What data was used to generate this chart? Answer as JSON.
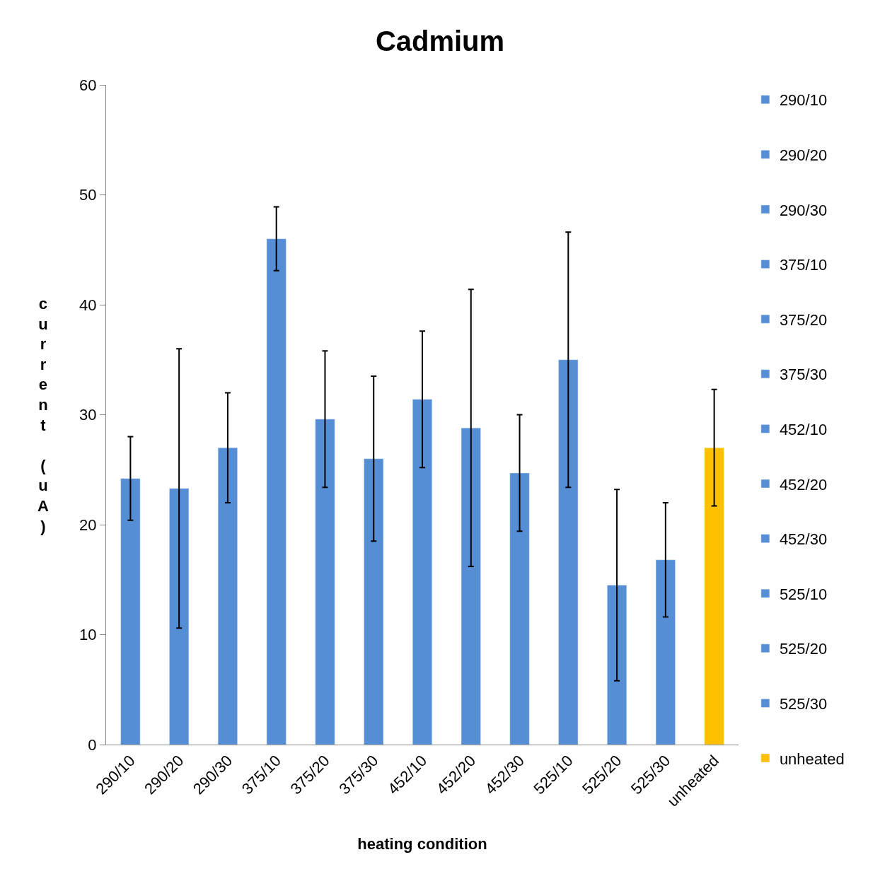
{
  "chart_data": {
    "type": "bar",
    "title": "Cadmium",
    "xlabel": "heating condition",
    "ylabel": "current (uA)",
    "categories": [
      "290/10",
      "290/20",
      "290/30",
      "375/10",
      "375/20",
      "375/30",
      "452/10",
      "452/20",
      "452/30",
      "525/10",
      "525/20",
      "525/30",
      "unheated"
    ],
    "series": [
      {
        "name": "290/10",
        "color": "#558ed5",
        "values": [
          24.2,
          null,
          null,
          null,
          null,
          null,
          null,
          null,
          null,
          null,
          null,
          null,
          null
        ],
        "errors": [
          3.8,
          null,
          null,
          null,
          null,
          null,
          null,
          null,
          null,
          null,
          null,
          null,
          null
        ]
      },
      {
        "name": "290/20",
        "color": "#558ed5",
        "values": [
          null,
          23.3,
          null,
          null,
          null,
          null,
          null,
          null,
          null,
          null,
          null,
          null,
          null
        ],
        "errors": [
          null,
          12.7,
          null,
          null,
          null,
          null,
          null,
          null,
          null,
          null,
          null,
          null,
          null
        ]
      },
      {
        "name": "290/30",
        "color": "#558ed5",
        "values": [
          null,
          null,
          27.0,
          null,
          null,
          null,
          null,
          null,
          null,
          null,
          null,
          null,
          null
        ],
        "errors": [
          null,
          null,
          5.0,
          null,
          null,
          null,
          null,
          null,
          null,
          null,
          null,
          null,
          null
        ]
      },
      {
        "name": "375/10",
        "color": "#558ed5",
        "values": [
          null,
          null,
          null,
          46.0,
          null,
          null,
          null,
          null,
          null,
          null,
          null,
          null,
          null
        ],
        "errors": [
          null,
          null,
          null,
          2.9,
          null,
          null,
          null,
          null,
          null,
          null,
          null,
          null,
          null
        ]
      },
      {
        "name": "375/20",
        "color": "#558ed5",
        "values": [
          null,
          null,
          null,
          null,
          29.6,
          null,
          null,
          null,
          null,
          null,
          null,
          null,
          null
        ],
        "errors": [
          null,
          null,
          null,
          null,
          6.2,
          null,
          null,
          null,
          null,
          null,
          null,
          null,
          null
        ]
      },
      {
        "name": "375/30",
        "color": "#558ed5",
        "values": [
          null,
          null,
          null,
          null,
          null,
          26.0,
          null,
          null,
          null,
          null,
          null,
          null,
          null
        ],
        "errors": [
          null,
          null,
          null,
          null,
          null,
          7.5,
          null,
          null,
          null,
          null,
          null,
          null,
          null
        ]
      },
      {
        "name": "452/10",
        "color": "#558ed5",
        "values": [
          null,
          null,
          null,
          null,
          null,
          null,
          31.4,
          null,
          null,
          null,
          null,
          null,
          null
        ],
        "errors": [
          null,
          null,
          null,
          null,
          null,
          null,
          6.2,
          null,
          null,
          null,
          null,
          null,
          null
        ]
      },
      {
        "name": "452/20",
        "color": "#558ed5",
        "values": [
          null,
          null,
          null,
          null,
          null,
          null,
          null,
          28.8,
          null,
          null,
          null,
          null,
          null
        ],
        "errors": [
          null,
          null,
          null,
          null,
          null,
          null,
          null,
          12.6,
          null,
          null,
          null,
          null,
          null
        ]
      },
      {
        "name": "452/30",
        "color": "#558ed5",
        "values": [
          null,
          null,
          null,
          null,
          null,
          null,
          null,
          null,
          24.7,
          null,
          null,
          null,
          null
        ],
        "errors": [
          null,
          null,
          null,
          null,
          null,
          null,
          null,
          null,
          5.3,
          null,
          null,
          null,
          null
        ]
      },
      {
        "name": "525/10",
        "color": "#558ed5",
        "values": [
          null,
          null,
          null,
          null,
          null,
          null,
          null,
          null,
          null,
          35.0,
          null,
          null,
          null
        ],
        "errors": [
          null,
          null,
          null,
          null,
          null,
          null,
          null,
          null,
          null,
          11.6,
          null,
          null,
          null
        ]
      },
      {
        "name": "525/20",
        "color": "#558ed5",
        "values": [
          null,
          null,
          null,
          null,
          null,
          null,
          null,
          null,
          null,
          null,
          14.5,
          null,
          null
        ],
        "errors": [
          null,
          null,
          null,
          null,
          null,
          null,
          null,
          null,
          null,
          null,
          8.7,
          null,
          null
        ]
      },
      {
        "name": "525/30",
        "color": "#558ed5",
        "values": [
          null,
          null,
          null,
          null,
          null,
          null,
          null,
          null,
          null,
          null,
          null,
          16.8,
          null
        ],
        "errors": [
          null,
          null,
          null,
          null,
          null,
          null,
          null,
          null,
          null,
          null,
          null,
          5.2,
          null
        ]
      },
      {
        "name": "unheated",
        "color": "#ffc000",
        "values": [
          null,
          null,
          null,
          null,
          null,
          null,
          null,
          null,
          null,
          null,
          null,
          null,
          27.0
        ],
        "errors": [
          null,
          null,
          null,
          null,
          null,
          null,
          null,
          null,
          null,
          null,
          null,
          null,
          5.3
        ]
      }
    ],
    "ylim": [
      0,
      60
    ],
    "yticks": [
      0,
      10,
      20,
      30,
      40,
      50,
      60
    ],
    "legend": "right"
  }
}
